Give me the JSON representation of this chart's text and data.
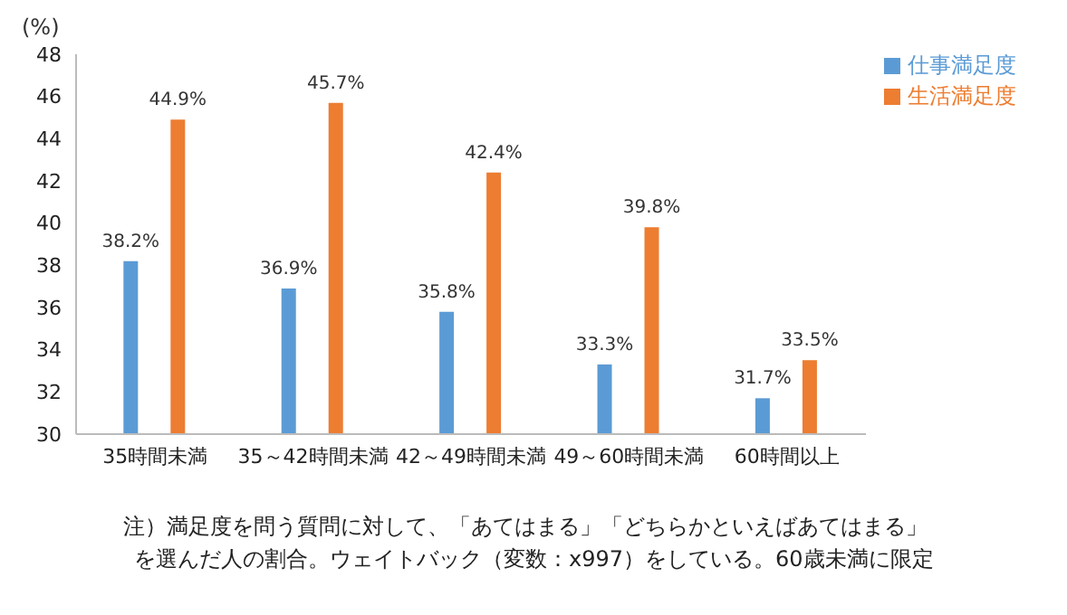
{
  "chart_data": {
    "type": "bar",
    "ylabel": "(%)",
    "categories": [
      "35時間未満",
      "35～42時間未満",
      "42～49時間未満",
      "49～60時間未満",
      "60時間以上"
    ],
    "series": [
      {
        "name": "仕事満足度",
        "color": "#5b9bd5",
        "values": [
          38.2,
          36.9,
          35.8,
          33.3,
          31.7
        ],
        "value_labels": [
          "38.2%",
          "36.9%",
          "35.8%",
          "33.3%",
          "31.7%"
        ]
      },
      {
        "name": "生活満足度",
        "color": "#ed7d31",
        "values": [
          44.9,
          45.7,
          42.4,
          39.8,
          33.5
        ],
        "value_labels": [
          "44.9%",
          "45.7%",
          "42.4%",
          "39.8%",
          "33.5%"
        ]
      }
    ],
    "ylim": [
      30,
      48
    ],
    "yticks": [
      30,
      32,
      34,
      36,
      38,
      40,
      42,
      44,
      46,
      48
    ],
    "grid": false,
    "legend": "top right",
    "annotations": [
      "注）満足度を問う質問に対して、「あてはまる」「どちらかといえばあてはまる」",
      "を選んだ人の割合。ウェイトバック（変数：x997）をしている。60歳未満に限定"
    ]
  }
}
